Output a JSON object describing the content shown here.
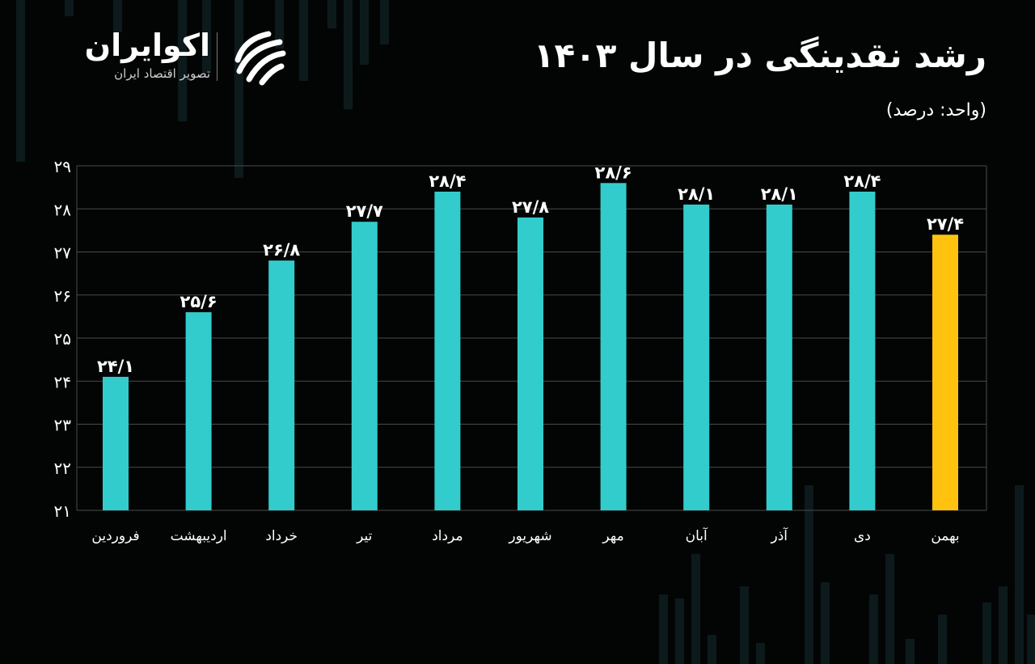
{
  "brand": {
    "name": "اکوایران",
    "tagline": "تصویر اقتصاد ایران"
  },
  "header": {
    "title": "رشد نقدینگی در سال ۱۴۰۳",
    "unit": "(واحد: درصد)"
  },
  "colors": {
    "background": "#030505",
    "bar": "#33cccc",
    "highlight_bar": "#ffc20e",
    "grid": "#4a4a4a",
    "text": "#ffffff"
  },
  "chart_data": {
    "type": "bar",
    "title": "رشد نقدینگی در سال ۱۴۰۳",
    "ylabel": "(واحد: درصد)",
    "categories": [
      "فروردین",
      "اردیبهشت",
      "خرداد",
      "تیر",
      "مرداد",
      "شهریور",
      "مهر",
      "آبان",
      "آذر",
      "دی",
      "بهمن"
    ],
    "values": [
      24.1,
      25.6,
      26.8,
      27.7,
      28.4,
      27.8,
      28.6,
      28.1,
      28.1,
      28.4,
      27.4
    ],
    "value_labels": [
      "۲۴/۱",
      "۲۵/۶",
      "۲۶/۸",
      "۲۷/۷",
      "۲۸/۴",
      "۲۷/۸",
      "۲۸/۶",
      "۲۸/۱",
      "۲۸/۱",
      "۲۸/۴",
      "۲۷/۴"
    ],
    "highlight_index": 10,
    "ylim": [
      21,
      29
    ],
    "yticks": [
      21,
      22,
      23,
      24,
      25,
      26,
      27,
      28,
      29
    ],
    "ytick_labels": [
      "۲۱",
      "۲۲",
      "۲۳",
      "۲۴",
      "۲۵",
      "۲۶",
      "۲۷",
      "۲۸",
      "۲۹"
    ],
    "grid": true
  }
}
